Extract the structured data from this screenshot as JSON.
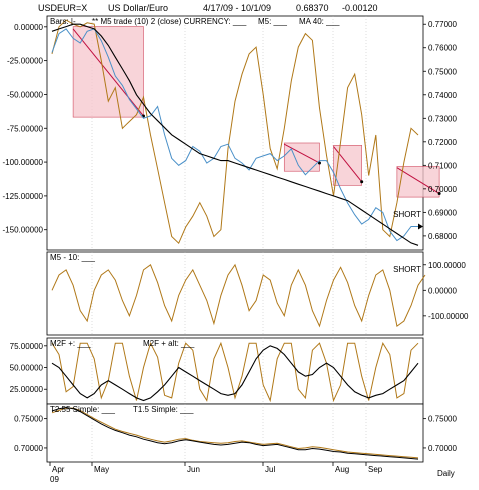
{
  "header": {
    "symbol": "USDEUR=X",
    "name": "US Dollar/Euro",
    "range": "4/17/09 - 10/1/09",
    "last": "0.68370",
    "change": "-0.00120"
  },
  "colors": {
    "price": "#4a90c8",
    "indicator": "#b07818",
    "ma": "#000000",
    "box_fill": "#f5c6cc",
    "box_stroke": "#d04c60",
    "trade_line": "#c01040"
  },
  "x_labels": [
    "Apr",
    "May",
    "Jun",
    "Jul",
    "Aug",
    "Sep"
  ],
  "year_label": "09",
  "daily_label": "Daily",
  "chart_data": [
    {
      "type": "line",
      "legend": [
        "Bars: |-",
        "** M5 trade (10) 2 (close) CURRENCY: ___",
        "M5: ___",
        "MA 40: ___"
      ],
      "left_ticks": [
        "0.00000",
        "-25.00000",
        "-50.00000",
        "-75.00000",
        "-100.00000",
        "-125.00000",
        "-150.00000"
      ],
      "right_ticks": [
        "0.77000",
        "0.76000",
        "0.75000",
        "0.74000",
        "0.73000",
        "0.72000",
        "0.71000",
        "0.70000",
        "0.69000",
        "0.68000"
      ],
      "left_ylim": [
        -165,
        8
      ],
      "right_ylim": [
        0.674,
        0.7735
      ],
      "annotation": "SHORT",
      "series": [
        {
          "name": "M5",
          "axis": "right",
          "values": [
            0.758,
            0.766,
            0.768,
            0.764,
            0.762,
            0.767,
            0.768,
            0.763,
            0.756,
            0.748,
            0.744,
            0.738,
            0.734,
            0.73,
            0.731,
            0.735,
            0.723,
            0.713,
            0.71,
            0.712,
            0.718,
            0.716,
            0.711,
            0.713,
            0.718,
            0.719,
            0.713,
            0.711,
            0.708,
            0.713,
            0.714,
            0.715,
            0.712,
            0.714,
            0.717,
            0.71,
            0.706,
            0.709,
            0.712,
            0.712,
            0.707,
            0.7,
            0.694,
            0.689,
            0.685,
            0.687,
            0.692,
            0.69,
            0.682,
            0.678,
            0.68,
            0.684,
            0.684
          ]
        },
        {
          "name": "MA 40",
          "axis": "right",
          "values": [
            0.767,
            0.768,
            0.769,
            0.77,
            0.77,
            0.769,
            0.768,
            0.765,
            0.761,
            0.756,
            0.751,
            0.746,
            0.74,
            0.736,
            0.732,
            0.729,
            0.726,
            0.723,
            0.721,
            0.719,
            0.717,
            0.715,
            0.714,
            0.713,
            0.712,
            0.712,
            0.711,
            0.71,
            0.709,
            0.708,
            0.707,
            0.706,
            0.705,
            0.704,
            0.703,
            0.702,
            0.701,
            0.7,
            0.699,
            0.698,
            0.697,
            0.696,
            0.695,
            0.693,
            0.691,
            0.689,
            0.687,
            0.685,
            0.683,
            0.681,
            0.679,
            0.677,
            0.676
          ]
        },
        {
          "name": "M5 trade",
          "axis": "left",
          "values": [
            -20,
            0,
            5,
            2,
            0,
            3,
            2,
            -25,
            -55,
            -45,
            -75,
            -70,
            -65,
            -52,
            -80,
            -105,
            -130,
            -155,
            -160,
            -148,
            -140,
            -130,
            -140,
            -155,
            -150,
            -90,
            -55,
            -35,
            -20,
            -15,
            -50,
            -90,
            -105,
            -75,
            -40,
            -15,
            -5,
            -10,
            -60,
            -95,
            -125,
            -85,
            -45,
            -35,
            -65,
            -110,
            -80,
            -150,
            -155,
            -130,
            -100,
            -75,
            -80
          ]
        }
      ],
      "trade_boxes": [
        {
          "x0": 3,
          "x1": 13,
          "y_top": 0.769,
          "y_bottom": 0.7305,
          "line": [
            0.768,
            0.731
          ]
        },
        {
          "x0": 33,
          "x1": 38,
          "y_top": 0.7195,
          "y_bottom": 0.7075,
          "line": [
            0.719,
            0.711
          ]
        },
        {
          "x0": 40,
          "x1": 44,
          "y_top": 0.7185,
          "y_bottom": 0.7015,
          "line": [
            0.718,
            0.703
          ]
        },
        {
          "x0": 49,
          "x1": 55,
          "y_top": 0.7095,
          "y_bottom": 0.6965,
          "line": [
            0.709,
            0.698
          ]
        }
      ],
      "end_marker": 0.684
    },
    {
      "type": "line",
      "legend": [
        "M5 - 10: ___"
      ],
      "right_ticks": [
        "100.00000",
        "0.00000",
        "-100.00000"
      ],
      "ylim": [
        -175,
        150
      ],
      "annotation": "SHORT",
      "series": [
        {
          "name": "M5 - 10",
          "values": [
            0,
            60,
            80,
            20,
            -80,
            -120,
            0,
            60,
            80,
            40,
            -40,
            -100,
            -20,
            80,
            100,
            30,
            -60,
            -120,
            -20,
            40,
            80,
            20,
            -40,
            -130,
            -20,
            60,
            100,
            20,
            -80,
            -40,
            60,
            40,
            -50,
            -100,
            20,
            80,
            20,
            -80,
            -140,
            -40,
            40,
            90,
            30,
            -60,
            -120,
            -20,
            60,
            80,
            0,
            -140,
            -120,
            -60,
            20,
            60
          ]
        }
      ]
    },
    {
      "type": "line",
      "legend": [
        "M2F +: ___",
        "M2F + alt: ___"
      ],
      "left_ticks": [
        "75.00000",
        "50.00000",
        "25.00000"
      ],
      "ylim": [
        8,
        84
      ],
      "series": [
        {
          "name": "M2F +",
          "values": [
            78,
            65,
            22,
            28,
            78,
            78,
            60,
            15,
            35,
            78,
            78,
            40,
            12,
            50,
            78,
            62,
            18,
            15,
            55,
            78,
            70,
            25,
            12,
            60,
            78,
            50,
            15,
            40,
            78,
            78,
            30,
            12,
            60,
            78,
            78,
            25,
            15,
            70,
            78,
            55,
            12,
            30,
            78,
            78,
            40,
            12,
            50,
            78,
            65,
            15,
            20,
            70,
            78
          ]
        },
        {
          "name": "M2F + alt",
          "values": [
            55,
            50,
            40,
            30,
            20,
            15,
            20,
            30,
            35,
            30,
            25,
            20,
            15,
            12,
            15,
            22,
            30,
            40,
            50,
            45,
            40,
            35,
            30,
            25,
            20,
            18,
            20,
            30,
            45,
            60,
            70,
            75,
            72,
            65,
            55,
            45,
            40,
            42,
            50,
            55,
            50,
            40,
            30,
            22,
            18,
            15,
            18,
            20,
            25,
            30,
            35,
            45,
            55
          ]
        }
      ]
    },
    {
      "type": "line",
      "legend": [
        "T2.55 Simple: ___",
        "T1.5 Simple: ___"
      ],
      "left_ticks": [
        "0.75000",
        "0.70000"
      ],
      "right_ticks": [
        "0.75000",
        "0.70000"
      ],
      "ylim": [
        0.676,
        0.775
      ],
      "series": [
        {
          "name": "T2.55 Simple",
          "values": [
            0.76,
            0.764,
            0.768,
            0.768,
            0.764,
            0.757,
            0.75,
            0.744,
            0.738,
            0.732,
            0.728,
            0.725,
            0.722,
            0.718,
            0.715,
            0.712,
            0.71,
            0.712,
            0.715,
            0.716,
            0.713,
            0.711,
            0.71,
            0.709,
            0.708,
            0.709,
            0.711,
            0.712,
            0.71,
            0.708,
            0.706,
            0.707,
            0.708,
            0.705,
            0.702,
            0.699,
            0.7,
            0.702,
            0.701,
            0.699,
            0.697,
            0.695,
            0.693,
            0.692,
            0.691,
            0.69,
            0.689,
            0.688,
            0.687,
            0.686,
            0.685,
            0.684,
            0.683
          ]
        },
        {
          "name": "T1.5 Simple",
          "values": [
            0.763,
            0.767,
            0.769,
            0.767,
            0.762,
            0.755,
            0.748,
            0.741,
            0.735,
            0.73,
            0.726,
            0.722,
            0.719,
            0.715,
            0.712,
            0.709,
            0.707,
            0.709,
            0.712,
            0.714,
            0.712,
            0.71,
            0.708,
            0.706,
            0.705,
            0.706,
            0.708,
            0.71,
            0.709,
            0.706,
            0.704,
            0.705,
            0.706,
            0.703,
            0.7,
            0.697,
            0.697,
            0.699,
            0.698,
            0.696,
            0.694,
            0.693,
            0.691,
            0.69,
            0.689,
            0.688,
            0.687,
            0.686,
            0.685,
            0.684,
            0.683,
            0.682,
            0.681
          ]
        }
      ]
    }
  ]
}
